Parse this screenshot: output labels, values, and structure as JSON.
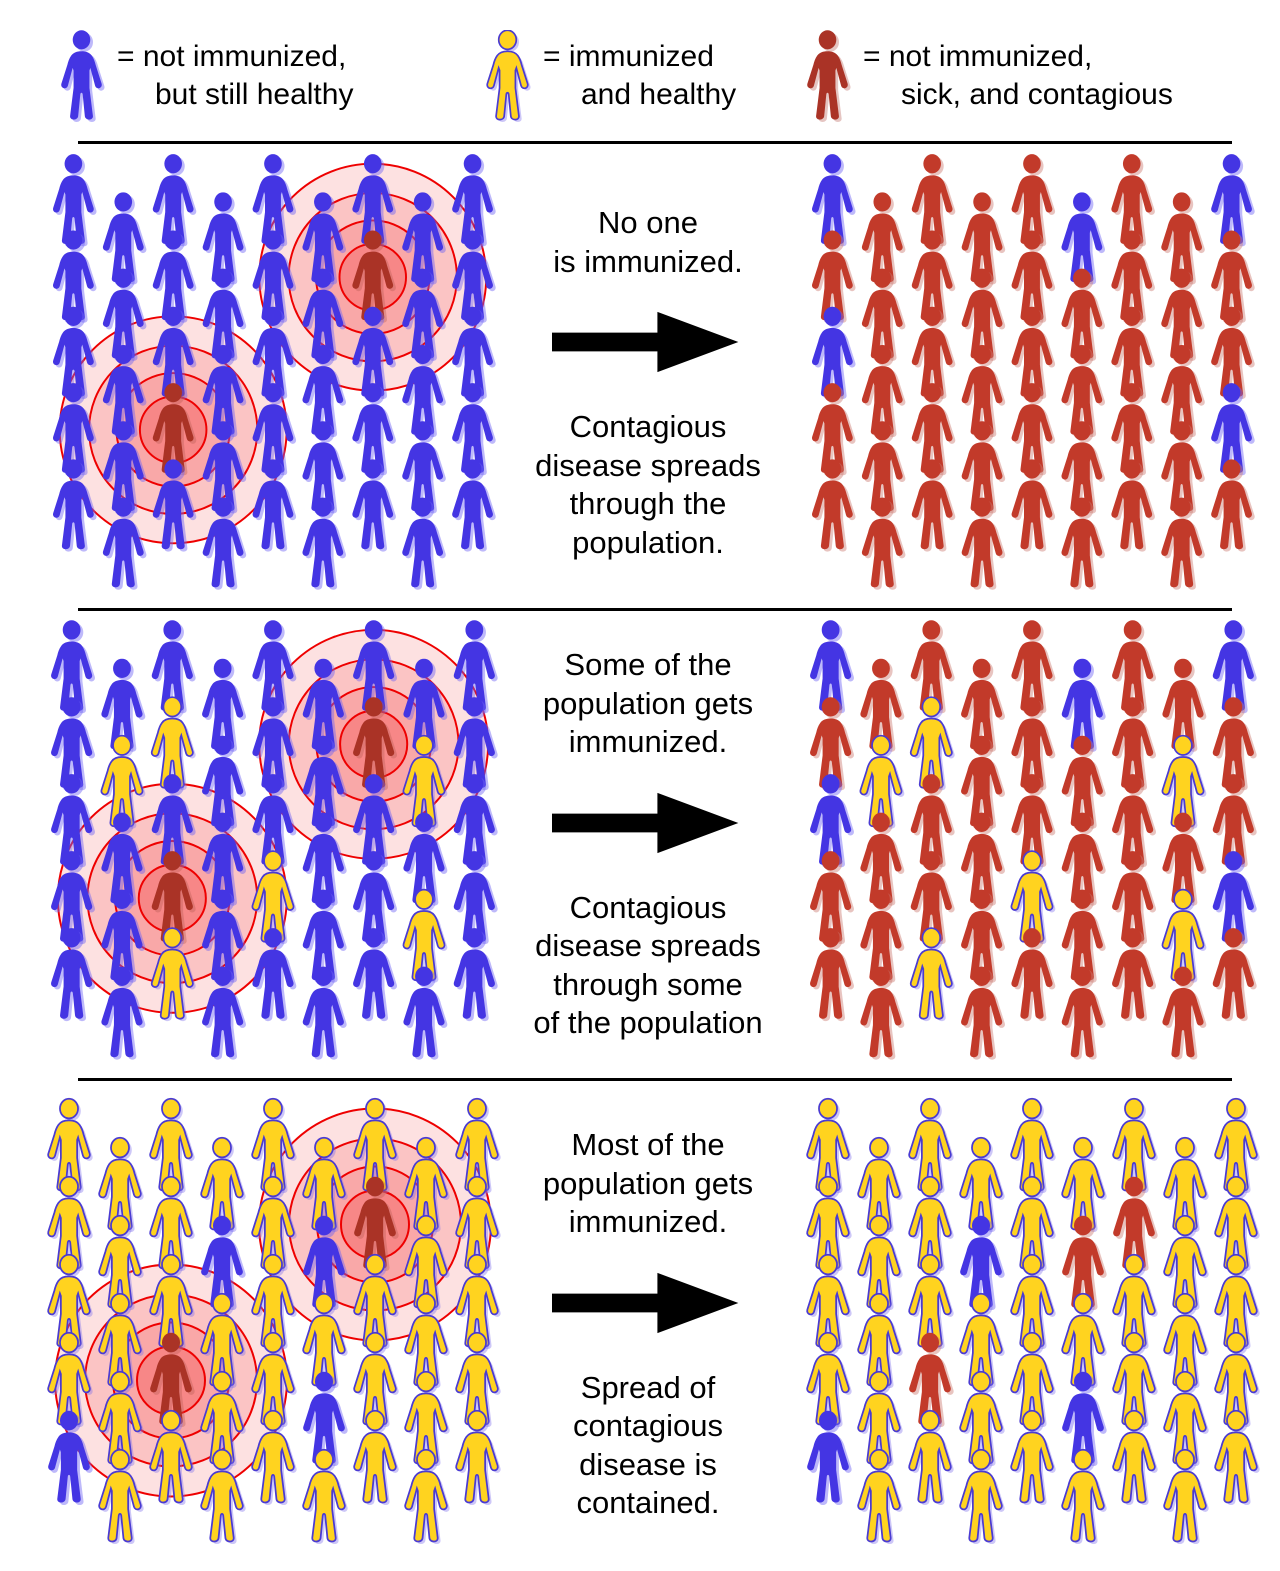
{
  "legend": {
    "items": [
      {
        "icon": "person-blue-icon",
        "color_key": "blue",
        "lines": [
          "= not immunized,",
          "but still healthy"
        ]
      },
      {
        "icon": "person-yellow-icon",
        "color_key": "yellow",
        "lines": [
          "= immunized",
          "and healthy"
        ]
      },
      {
        "icon": "person-red-icon",
        "color_key": "sick",
        "lines": [
          "= not immunized,",
          "sick, and contagious"
        ]
      }
    ]
  },
  "rows": [
    {
      "top_text": [
        "No one",
        "is immunized."
      ],
      "bottom_text": [
        "Contagious",
        "disease spreads",
        "through the",
        "population."
      ],
      "before_panel": {
        "ripples": true,
        "grid": [
          "BBBBBBBBB",
          "BBBBBBSBB",
          "BBBBBBBBB",
          "BBSBBBBBB",
          "BBBBBBBBB"
        ]
      },
      "after_panel": {
        "ripples": false,
        "grid": [
          "BRRRRBRRB",
          "RRRRRRRRR",
          "BRRRRRRRR",
          "RRRRRRRRB",
          "RRRRRRRRR"
        ]
      }
    },
    {
      "top_text": [
        "Some of the",
        "population gets",
        "immunized."
      ],
      "bottom_text": [
        "Contagious",
        "disease spreads",
        "through some",
        "of the population"
      ],
      "before_panel": {
        "ripples": true,
        "grid": [
          "BBBBBBBBB",
          "BYYBBBSYB",
          "BBBBBBBBB",
          "BBSBYBBYB",
          "BBYBBBBBB"
        ]
      },
      "after_panel": {
        "ripples": false,
        "grid": [
          "BRRRRBRRB",
          "RYYRRRRYR",
          "BRRRRRRRR",
          "RRRRYRRYB",
          "RRYRRRRRR"
        ]
      }
    },
    {
      "top_text": [
        "Most of the",
        "population gets",
        "immunized."
      ],
      "bottom_text": [
        "Spread of",
        "contagious",
        "disease is",
        "contained."
      ],
      "before_panel": {
        "ripples": true,
        "grid": [
          "YYYYYYYYY",
          "YYYBYBSYY",
          "YYYYYYYYY",
          "YYSYYBYYY",
          "BYYYYYYYY"
        ]
      },
      "after_panel": {
        "ripples": false,
        "grid": [
          "YYYYYYYYY",
          "YYYBYRRYY",
          "YYYYYYYYY",
          "YYRYYBYYY",
          "BYYYYYYYY"
        ]
      }
    }
  ],
  "grid_legend": {
    "B": "blue",
    "Y": "yellow",
    "R": "red",
    "S": "sick"
  },
  "colors": {
    "blue": "#4435e3",
    "blue_shadow": "rgba(110,100,245,0.45)",
    "yellow": "#ffd31f",
    "yellow_stroke": "#4a3bd2",
    "yellow_shadow": "rgba(130,115,235,0.40)",
    "red": "#c23a2a",
    "red_shadow": "rgba(205,125,115,0.45)",
    "sick": "#aa3326",
    "sick_shadow": "rgba(180,90,80,0.35)",
    "text": "#000000",
    "separator": "#000000",
    "arrow": "#000000"
  },
  "ripples": {
    "stroke": "#ee0000",
    "stroke_width": 2,
    "rings": [
      {
        "r": 116,
        "fill": "rgba(246,104,104,0.20)"
      },
      {
        "r": 86,
        "fill": "rgba(246,104,104,0.24)"
      },
      {
        "r": 58,
        "fill": "rgba(246,104,104,0.30)"
      },
      {
        "r": 34,
        "fill": "rgba(244,84,84,0.40)"
      }
    ]
  }
}
